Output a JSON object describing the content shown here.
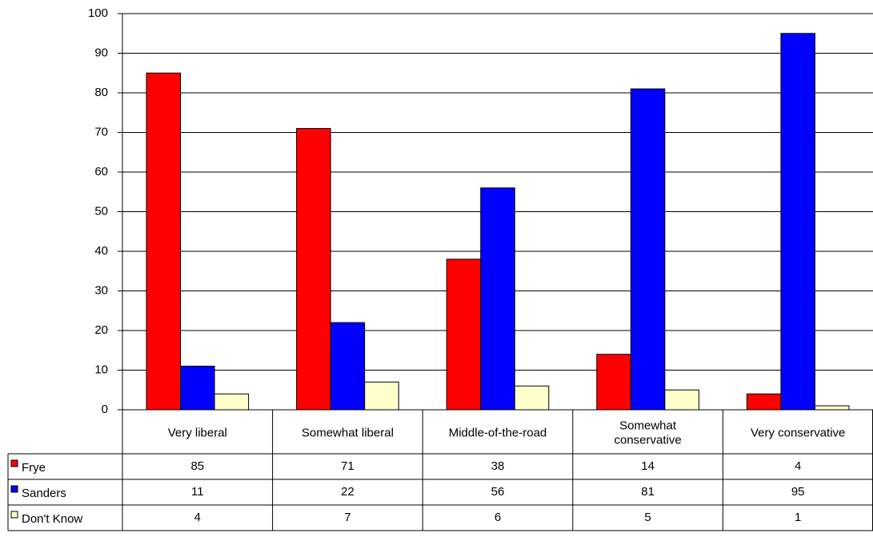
{
  "chart_data": {
    "type": "bar",
    "categories": [
      "Very liberal",
      "Somewhat liberal",
      "Middle-of-the-road",
      "Somewhat conservative",
      "Very conservative"
    ],
    "series": [
      {
        "name": "Frye",
        "color": "#ff0000",
        "values": [
          85,
          71,
          38,
          14,
          4
        ]
      },
      {
        "name": "Sanders",
        "color": "#0000ff",
        "values": [
          11,
          22,
          56,
          81,
          95
        ]
      },
      {
        "name": "Don't Know",
        "color": "#ffffcc",
        "values": [
          4,
          7,
          6,
          5,
          1
        ]
      }
    ],
    "ylim": [
      0,
      100
    ],
    "yticks": [
      0,
      10,
      20,
      30,
      40,
      50,
      60,
      70,
      80,
      90,
      100
    ],
    "grid": true,
    "data_table": true
  }
}
